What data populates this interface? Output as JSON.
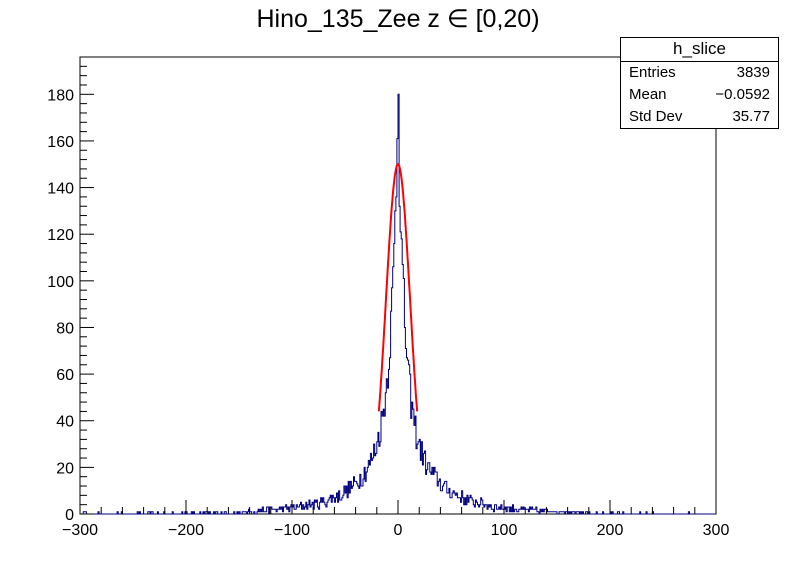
{
  "chart_data": {
    "type": "histogram",
    "title": "Hino_135_Zee z  ∈ [0,20)",
    "xlim": [
      -300,
      300
    ],
    "ylim": [
      0,
      196
    ],
    "x_ticks": [
      -300,
      -200,
      -100,
      0,
      100,
      200,
      300
    ],
    "y_ticks": [
      0,
      20,
      40,
      60,
      80,
      100,
      120,
      140,
      160,
      180
    ],
    "histogram": {
      "name": "h_slice",
      "color": "#000080",
      "bin_width": 1,
      "profile": {
        "peak_center": 0,
        "peak_height": 180,
        "note": "sharply peaked distribution around 0, falling to ~60 at |x|=20, ~20 at |x|=50, ~5 at |x|=100"
      }
    },
    "fit": {
      "name": "gaussian fit",
      "color": "#ff0000",
      "amplitude": 150,
      "mean": 0,
      "sigma": 11.5,
      "range": [
        -18,
        18
      ]
    },
    "stats_box": {
      "title": "h_slice",
      "entries_label": "Entries",
      "entries_value": "3839",
      "mean_label": "Mean",
      "mean_value": "−0.0592",
      "std_label": "Std Dev",
      "std_value": "35.77"
    }
  }
}
